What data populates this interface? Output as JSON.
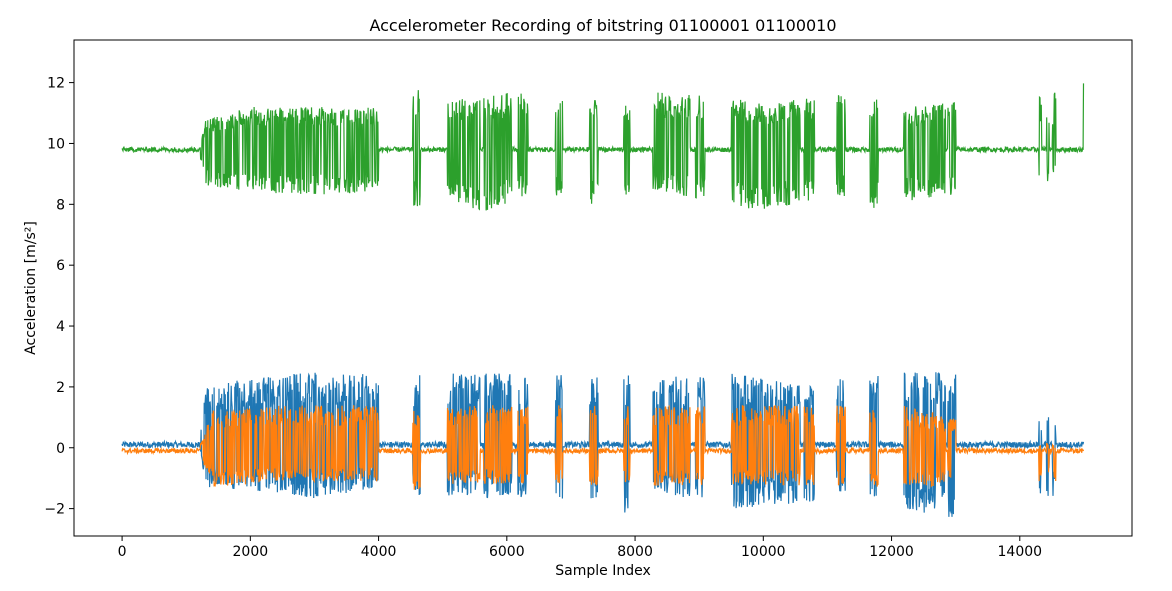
{
  "chart_data": {
    "type": "line",
    "title": "Accelerometer Recording of bitstring 01100001 01100010",
    "xlabel": "Sample Index",
    "ylabel": "Acceleration [m/s²]",
    "xlim": [
      -750,
      15750
    ],
    "ylim": [
      -2.9,
      13.4
    ],
    "xticks": [
      0,
      2000,
      4000,
      6000,
      8000,
      10000,
      12000,
      14000
    ],
    "xtick_labels": [
      "0",
      "2000",
      "4000",
      "6000",
      "8000",
      "10000",
      "12000",
      "14000"
    ],
    "yticks": [
      -2,
      0,
      2,
      4,
      6,
      8,
      10,
      12
    ],
    "ytick_labels": [
      "−2",
      "0",
      "2",
      "4",
      "6",
      "8",
      "10",
      "12"
    ],
    "grid": false,
    "series": [
      {
        "color": "#1f77b4",
        "baseline": 0.1,
        "idle_amplitude": 0.1,
        "points": [
          [
            0,
            0.1
          ],
          [
            1200,
            0.1
          ],
          [
            1300,
            2.0
          ],
          [
            1300,
            -1.3
          ],
          [
            2000,
            2.3
          ],
          [
            2000,
            -1.4
          ],
          [
            3000,
            2.5
          ],
          [
            3000,
            -1.7
          ],
          [
            4000,
            2.4
          ],
          [
            4000,
            -1.3
          ],
          [
            4550,
            2.4
          ],
          [
            4600,
            -1.6
          ],
          [
            5100,
            2.5
          ],
          [
            5100,
            -1.6
          ],
          [
            6300,
            2.4
          ],
          [
            6300,
            -1.7
          ],
          [
            6800,
            2.5
          ],
          [
            6800,
            -1.7
          ],
          [
            7300,
            2.4
          ],
          [
            7300,
            -1.8
          ],
          [
            7850,
            2.4
          ],
          [
            7850,
            -2.2
          ],
          [
            8300,
            2.3
          ],
          [
            8300,
            -1.4
          ],
          [
            9500,
            2.5
          ],
          [
            9500,
            -2.0
          ],
          [
            10700,
            2.0
          ],
          [
            10700,
            -1.8
          ],
          [
            11200,
            2.4
          ],
          [
            11200,
            -1.5
          ],
          [
            11700,
            2.5
          ],
          [
            11700,
            -1.6
          ],
          [
            12200,
            2.5
          ],
          [
            12200,
            -2.0
          ],
          [
            12900,
            2.5
          ],
          [
            12900,
            -2.3
          ],
          [
            14400,
            1.1
          ],
          [
            14400,
            -1.7
          ],
          [
            15000,
            0.2
          ]
        ]
      },
      {
        "color": "#ff7f0e",
        "baseline": -0.1,
        "idle_amplitude": 0.08,
        "points": [
          [
            0,
            -0.1
          ],
          [
            1200,
            -0.1
          ],
          [
            1400,
            1.2
          ],
          [
            1400,
            -1.3
          ],
          [
            2500,
            1.4
          ],
          [
            2500,
            -1.1
          ],
          [
            4000,
            1.4
          ],
          [
            4000,
            -1.1
          ],
          [
            4550,
            1.4
          ],
          [
            4600,
            -1.4
          ],
          [
            5100,
            1.4
          ],
          [
            5100,
            -1.2
          ],
          [
            6300,
            1.4
          ],
          [
            6300,
            -1.2
          ],
          [
            8300,
            1.4
          ],
          [
            8300,
            -1.3
          ],
          [
            9500,
            1.4
          ],
          [
            9500,
            -1.2
          ],
          [
            12200,
            1.4
          ],
          [
            12200,
            -1.3
          ],
          [
            14500,
            0.1
          ],
          [
            14550,
            -1.2
          ],
          [
            15000,
            -0.1
          ]
        ]
      },
      {
        "color": "#2ca02c",
        "baseline": 9.8,
        "idle_amplitude": 0.08,
        "points": [
          [
            0,
            9.8
          ],
          [
            1200,
            9.8
          ],
          [
            1300,
            10.8
          ],
          [
            1300,
            8.6
          ],
          [
            2000,
            11.2
          ],
          [
            2000,
            8.4
          ],
          [
            3000,
            11.2
          ],
          [
            3000,
            8.3
          ],
          [
            4000,
            11.2
          ],
          [
            4000,
            8.4
          ],
          [
            4550,
            11.8
          ],
          [
            4600,
            7.9
          ],
          [
            5100,
            11.5
          ],
          [
            5100,
            8.2
          ],
          [
            5650,
            11.5
          ],
          [
            5650,
            7.7
          ],
          [
            6300,
            11.8
          ],
          [
            6300,
            8.3
          ],
          [
            6800,
            11.5
          ],
          [
            6800,
            8.2
          ],
          [
            7300,
            11.5
          ],
          [
            7300,
            7.9
          ],
          [
            7850,
            11.3
          ],
          [
            7850,
            8.3
          ],
          [
            8300,
            11.7
          ],
          [
            8300,
            8.5
          ],
          [
            9500,
            11.5
          ],
          [
            9500,
            7.9
          ],
          [
            10000,
            11.3
          ],
          [
            10000,
            7.8
          ],
          [
            10700,
            11.5
          ],
          [
            10700,
            8.1
          ],
          [
            11200,
            11.8
          ],
          [
            11200,
            8.3
          ],
          [
            11700,
            11.5
          ],
          [
            11700,
            7.8
          ],
          [
            12200,
            11.2
          ],
          [
            12200,
            8.1
          ],
          [
            12900,
            11.4
          ],
          [
            12900,
            8.3
          ],
          [
            14500,
            11.6
          ],
          [
            14500,
            8.5
          ],
          [
            15000,
            12.6
          ],
          [
            15000,
            9.7
          ]
        ]
      }
    ],
    "bursts": [
      [
        1220,
        4000
      ],
      [
        4530,
        4650
      ],
      [
        5070,
        5580
      ],
      [
        5640,
        6080
      ],
      [
        6170,
        6330
      ],
      [
        6760,
        6870
      ],
      [
        7290,
        7420
      ],
      [
        7820,
        7920
      ],
      [
        8280,
        8860
      ],
      [
        8940,
        9090
      ],
      [
        9500,
        10570
      ],
      [
        10640,
        10800
      ],
      [
        11140,
        11280
      ],
      [
        11660,
        11790
      ],
      [
        12190,
        12840
      ],
      [
        12880,
        13000
      ]
    ],
    "spikes": [
      [
        14300,
        14340
      ],
      [
        14420,
        14460
      ],
      [
        14510,
        14560
      ],
      [
        14990,
        15010
      ]
    ]
  }
}
